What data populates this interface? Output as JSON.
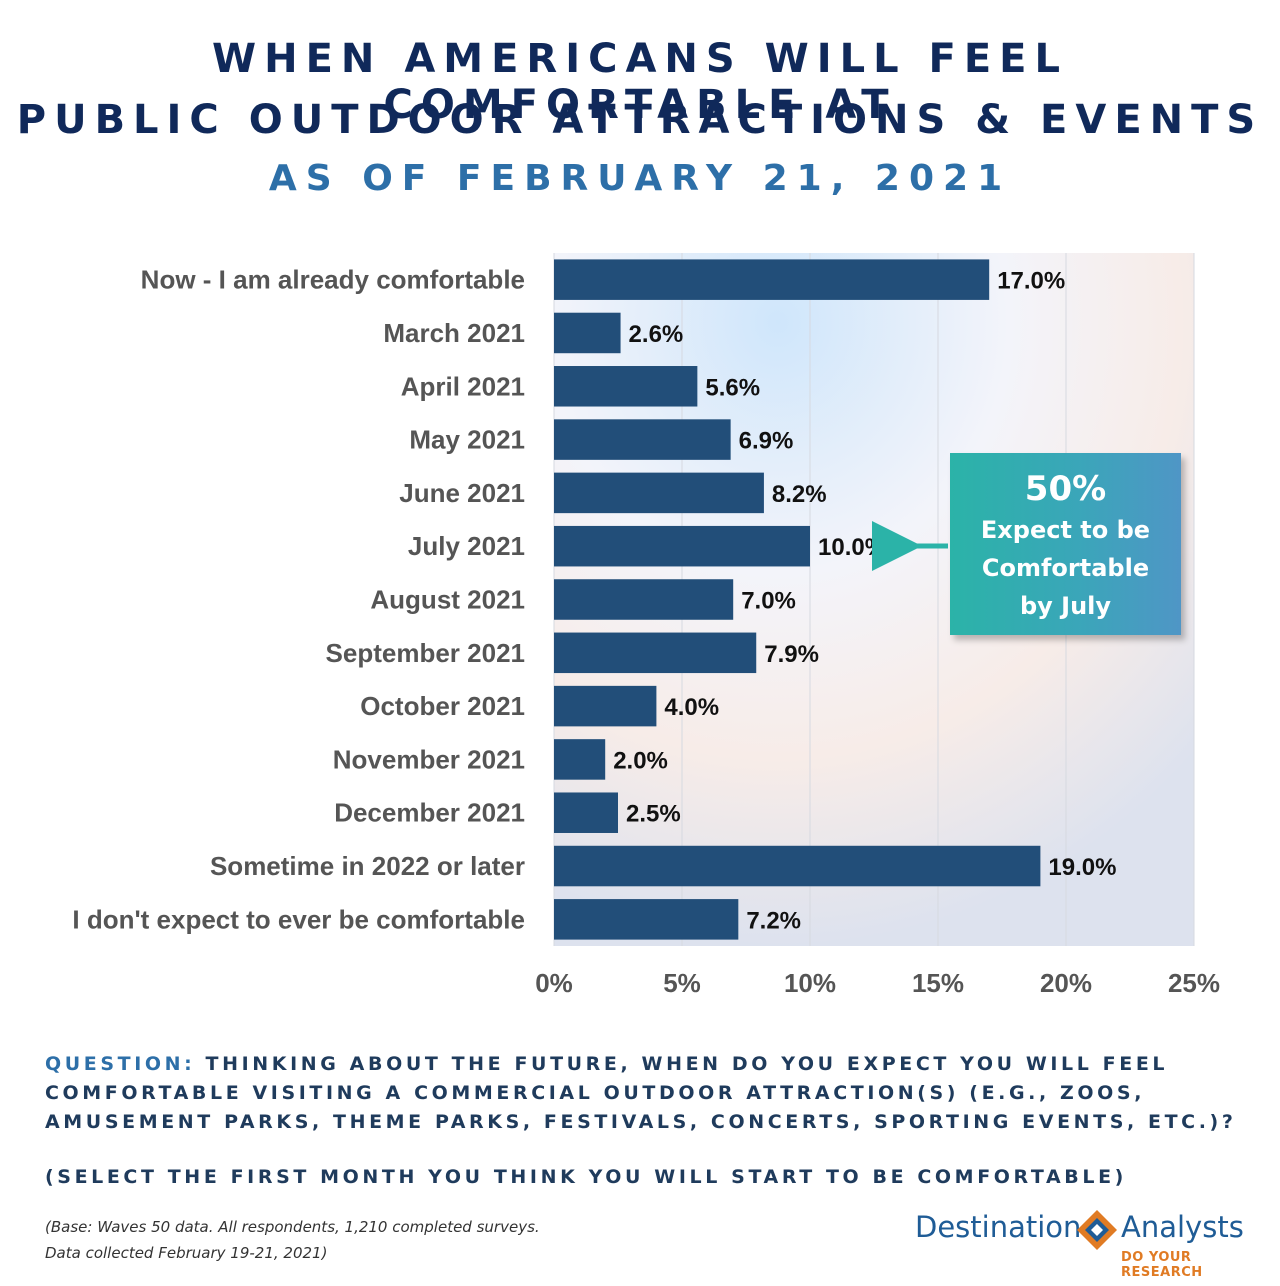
{
  "title_line1": "WHEN AMERICANS WILL FEEL COMFORTABLE AT",
  "title_line2": "PUBLIC OUTDOOR ATTRACTIONS & EVENTS",
  "subtitle": "AS OF FEBRUARY 21, 2021",
  "chart_data": {
    "type": "bar",
    "orientation": "horizontal",
    "categories": [
      "Now - I am already comfortable",
      "March 2021",
      "April 2021",
      "May 2021",
      "June 2021",
      "July 2021",
      "August 2021",
      "September 2021",
      "October 2021",
      "November 2021",
      "December 2021",
      "Sometime in 2022 or later",
      "I don't expect to ever be comfortable"
    ],
    "values": [
      17.0,
      2.6,
      5.6,
      6.9,
      8.2,
      10.0,
      7.0,
      7.9,
      4.0,
      2.0,
      2.5,
      19.0,
      7.2
    ],
    "value_labels": [
      "17.0%",
      "2.6%",
      "5.6%",
      "6.9%",
      "8.2%",
      "10.0%",
      "7.0%",
      "7.9%",
      "4.0%",
      "2.0%",
      "2.5%",
      "19.0%",
      "7.2%"
    ],
    "xlim": [
      0,
      25
    ],
    "x_ticks": [
      "0%",
      "5%",
      "10%",
      "15%",
      "20%",
      "25%"
    ],
    "grid": true,
    "bar_color": "#224e79",
    "annotation": {
      "big": "50%",
      "line1": "Expect to be",
      "line2": "Comfortable",
      "line3": "by July",
      "points_to": "July 2021",
      "color": "#2bb3a8"
    }
  },
  "question_label": "QUESTION:",
  "question_text": "THINKING ABOUT THE FUTURE, WHEN DO YOU EXPECT YOU WILL FEEL COMFORTABLE VISITING A COMMERCIAL OUTDOOR ATTRACTION(S) (E.G., ZOOS, AMUSEMENT PARKS, THEME PARKS, FESTIVALS, CONCERTS, SPORTING EVENTS, ETC.)?",
  "question_note": "(SELECT THE FIRST MONTH YOU THINK YOU WILL START TO BE COMFORTABLE)",
  "base_line1": "(Base: Waves 50 data. All respondents, 1,210 completed surveys.",
  "base_line2": "Data collected February 19-21, 2021)",
  "logo": {
    "word1": "Destination",
    "word2": "Analysts",
    "tagline": "DO YOUR RESEARCH"
  }
}
